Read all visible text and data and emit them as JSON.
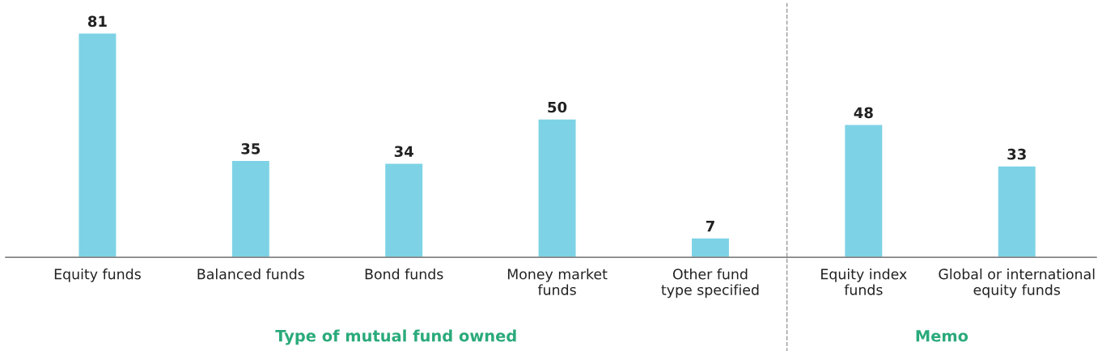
{
  "chart_data": {
    "type": "bar",
    "categories": [
      "Equity funds",
      "Balanced funds",
      "Bond funds",
      "Money market\nfunds",
      "Other fund\ntype specified",
      "Equity index\nfunds",
      "Global or international\nequity funds"
    ],
    "values": [
      81,
      35,
      34,
      50,
      7,
      48,
      33
    ],
    "color": "#7dd3e5",
    "data_labels": true,
    "annotations": [
      "Type of mutual fund owned",
      "Memo"
    ],
    "grid": false
  }
}
